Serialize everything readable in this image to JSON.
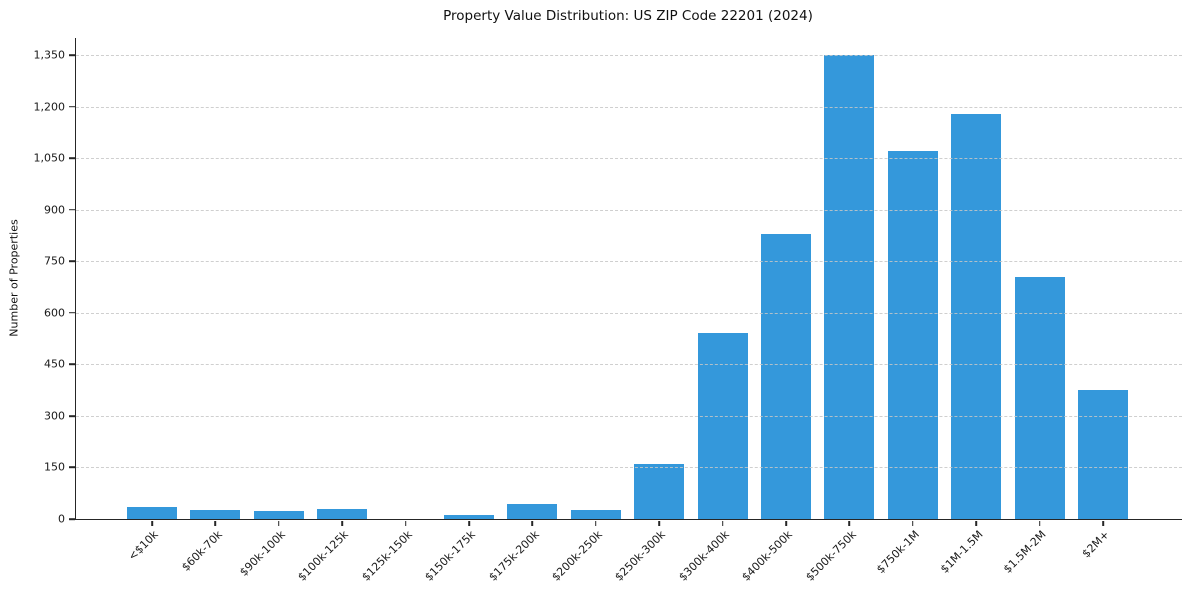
{
  "chart_data": {
    "type": "bar",
    "title": "Property Value Distribution: US ZIP Code 22201 (2024)",
    "xlabel": "",
    "ylabel": "Number of Properties",
    "categories": [
      "<$10k",
      "$60k-70k",
      "$90k-100k",
      "$100k-125k",
      "$125k-150k",
      "$150k-175k",
      "$175k-200k",
      "$200k-250k",
      "$250k-300k",
      "$300k-400k",
      "$400k-500k",
      "$500k-750k",
      "$750k-1M",
      "$1M-1.5M",
      "$1.5M-2M",
      "$2M+"
    ],
    "values": [
      35,
      25,
      22,
      30,
      0,
      12,
      45,
      25,
      160,
      540,
      830,
      1350,
      1070,
      1180,
      705,
      375
    ],
    "yticks": [
      0,
      150,
      300,
      450,
      600,
      750,
      900,
      1050,
      1200,
      1350
    ],
    "ytick_labels": [
      "0",
      "150",
      "300",
      "450",
      "600",
      "750",
      "900",
      "1,050",
      "1,200",
      "1,350"
    ],
    "ylim": [
      0,
      1400
    ],
    "grid": "horizontal-dashed",
    "legend": "none",
    "bar_color": "#3498db",
    "grid_color": "#c7c7c7",
    "axis_color": "#262626",
    "text_color": "#1a1a1a"
  }
}
